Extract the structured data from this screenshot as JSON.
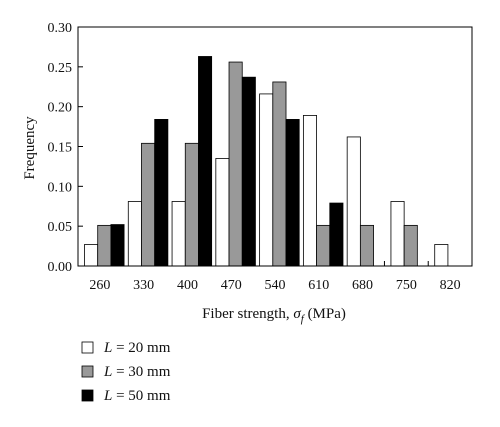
{
  "chart_data": {
    "type": "bar",
    "title": "",
    "categories": [
      "260",
      "330",
      "400",
      "470",
      "540",
      "610",
      "680",
      "750",
      "820"
    ],
    "series": [
      {
        "name": "L = 20 mm",
        "legend_var": "L",
        "legend_rest": " = 20 mm",
        "color": "#ffffff",
        "values": [
          0.027,
          0.081,
          0.081,
          0.135,
          0.216,
          0.189,
          0.162,
          0.081,
          0.027
        ]
      },
      {
        "name": "L = 30 mm",
        "legend_var": "L",
        "legend_rest": " = 30 mm",
        "color": "#999999",
        "values": [
          0.051,
          0.154,
          0.154,
          0.256,
          0.231,
          0.051,
          0.051,
          0.051,
          0
        ]
      },
      {
        "name": "L = 50 mm",
        "legend_var": "L",
        "legend_rest": " = 50 mm",
        "color": "#000000",
        "values": [
          0.052,
          0.184,
          0.263,
          0.237,
          0.184,
          0.079,
          0,
          0,
          0
        ]
      }
    ],
    "ylim": [
      0,
      0.3
    ],
    "yticks": [
      "0.00",
      "0.05",
      "0.10",
      "0.15",
      "0.20",
      "0.25",
      "0.30"
    ],
    "xlabel_prefix": "Fiber strength, ",
    "xlabel_symbol": "σ",
    "xlabel_subscript": "f",
    "xlabel_suffix": " (MPa)",
    "ylabel": "Frequency",
    "grid": false,
    "legend_position": "bottom-left"
  }
}
